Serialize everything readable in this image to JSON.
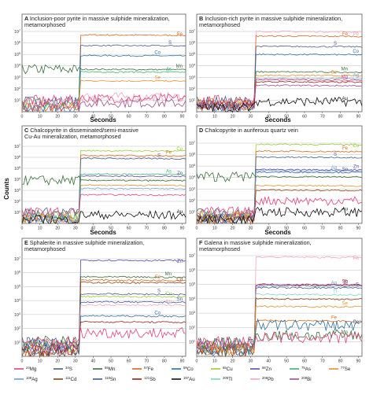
{
  "figure": {
    "ylabel": "Counts",
    "xlabel": "Seconds",
    "xticks": [
      0,
      10,
      20,
      30,
      40,
      50,
      60,
      70,
      80,
      90
    ],
    "yticks": [
      {
        "exp": 1
      },
      {
        "exp": 2
      },
      {
        "exp": 3
      },
      {
        "exp": 4
      },
      {
        "exp": 5
      },
      {
        "exp": 6
      },
      {
        "exp": 7
      }
    ]
  },
  "legend": [
    {
      "mass": "24",
      "el": "Mg",
      "color": "#e0457b"
    },
    {
      "mass": "34",
      "el": "S",
      "color": "#4a5d8c"
    },
    {
      "mass": "55",
      "el": "Mn",
      "color": "#3c6e3c"
    },
    {
      "mass": "57",
      "el": "Fe",
      "color": "#d2691e"
    },
    {
      "mass": "59",
      "el": "Co",
      "color": "#2f6f9f"
    },
    {
      "mass": "65",
      "el": "Cu",
      "color": "#9acd32"
    },
    {
      "mass": "66",
      "el": "Zn",
      "color": "#5b4aa8"
    },
    {
      "mass": "75",
      "el": "As",
      "color": "#3cb371"
    },
    {
      "mass": "77",
      "el": "Se",
      "color": "#e8902c"
    },
    {
      "mass": "109",
      "el": "Ag",
      "color": "#6f9fd0"
    },
    {
      "mass": "111",
      "el": "Cd",
      "color": "#8b4513"
    },
    {
      "mass": "118",
      "el": "Sn",
      "color": "#3d5aa0"
    },
    {
      "mass": "121",
      "el": "Sb",
      "color": "#9b1c1c"
    },
    {
      "mass": "197",
      "el": "Au",
      "color": "#111111"
    },
    {
      "mass": "205",
      "el": "Tl",
      "color": "#7fd6c0"
    },
    {
      "mass": "208",
      "el": "Pb",
      "color": "#f4a6bd"
    },
    {
      "mass": "209",
      "el": "Bi",
      "color": "#a0508f"
    }
  ],
  "chart_data": [
    {
      "type": "line",
      "panel": "A",
      "title": "Inclusion-poor pyrite in massive sulphide mineralization, metamorphosed",
      "xlabel": "",
      "ylabel": "Counts",
      "ylog": true,
      "ylim": [
        1,
        10000000
      ],
      "xlim": [
        0,
        92
      ],
      "onset": 33,
      "series": [
        {
          "name": "Fe",
          "color": "#d2691e",
          "bg": 2,
          "sig": 5000000,
          "label": "Fe"
        },
        {
          "name": "S",
          "color": "#4a5d8c",
          "bg": 8,
          "sig": 600000,
          "label": "S"
        },
        {
          "name": "Co",
          "color": "#2f6f9f",
          "bg": 2,
          "sig": 80000,
          "label": "Co"
        },
        {
          "name": "Mn",
          "color": "#3c6e3c",
          "bg": 5000,
          "sig": 5000,
          "label": "Mn"
        },
        {
          "name": "As",
          "color": "#3cb371",
          "bg": 5,
          "sig": 3000,
          "label": "As"
        },
        {
          "name": "Se",
          "color": "#e8902c",
          "bg": 3,
          "sig": 500,
          "label": "Se"
        },
        {
          "name": "Pb",
          "color": "#f4a6bd",
          "bg": 5,
          "sig": 20
        },
        {
          "name": "Mg",
          "color": "#e0457b",
          "bg": 10,
          "sig": 15
        },
        {
          "name": "Bi",
          "color": "#a0508f",
          "bg": 3,
          "sig": 6
        }
      ]
    },
    {
      "type": "line",
      "panel": "B",
      "title": "Inclusion-rich pyrite in massive sulphide mineralization, metamorphosed",
      "xlabel": "",
      "ylabel": "Counts",
      "ylog": true,
      "ylim": [
        1,
        10000000
      ],
      "xlim": [
        0,
        92
      ],
      "onset": 33,
      "series": [
        {
          "name": "Pb",
          "color": "#f4a6bd",
          "bg": 5,
          "sig": 10000000,
          "label": "Pb"
        },
        {
          "name": "Fe",
          "color": "#d2691e",
          "bg": 3,
          "sig": 4000000,
          "label": "Fe"
        },
        {
          "name": "S",
          "color": "#4a5d8c",
          "bg": 8,
          "sig": 500000,
          "label": "S"
        },
        {
          "name": "Co",
          "color": "#2f6f9f",
          "bg": 3,
          "sig": 100000,
          "label": "Co"
        },
        {
          "name": "Mn",
          "color": "#3c6e3c",
          "bg": 5,
          "sig": 3000,
          "label": "Mn"
        },
        {
          "name": "Se",
          "color": "#e8902c",
          "bg": 5,
          "sig": 1500,
          "label": "Se"
        },
        {
          "name": "Ag",
          "color": "#6f9fd0",
          "bg": 3,
          "sig": 800,
          "label": "Ag"
        },
        {
          "name": "Mg",
          "color": "#e0457b",
          "bg": 10,
          "sig": 600,
          "label": "Mg"
        },
        {
          "name": "Sb",
          "color": "#9b1c1c",
          "bg": 3,
          "sig": 400
        },
        {
          "name": "Bi",
          "color": "#a0508f",
          "bg": 3,
          "sig": 200
        },
        {
          "name": "Au",
          "color": "#111111",
          "bg": 2,
          "sig": 8,
          "label": "Au"
        }
      ]
    },
    {
      "type": "line",
      "panel": "C",
      "title": "Chalcopyrite in disseminated/semi-massive Cu-Au mineralization, metamorphosed",
      "xlabel": "",
      "ylabel": "Counts",
      "ylog": true,
      "ylim": [
        1,
        10000000
      ],
      "xlim": [
        0,
        92
      ],
      "onset": 33,
      "series": [
        {
          "name": "Cu",
          "color": "#9acd32",
          "bg": 5,
          "sig": 4000000,
          "label": "Cu"
        },
        {
          "name": "Fe",
          "color": "#d2691e",
          "bg": 3,
          "sig": 1500000,
          "label": "Fe"
        },
        {
          "name": "S",
          "color": "#4a5d8c",
          "bg": 10,
          "sig": 800000,
          "label": "S"
        },
        {
          "name": "Zn",
          "color": "#5b4aa8",
          "bg": 3,
          "sig": 20000,
          "label": "Zn"
        },
        {
          "name": "As",
          "color": "#3cb371",
          "bg": 4,
          "sig": 30000,
          "label": "As"
        },
        {
          "name": "Mn",
          "color": "#3c6e3c",
          "bg": 8000,
          "sig": 8000
        },
        {
          "name": "Se",
          "color": "#e8902c",
          "bg": 3,
          "sig": 3000
        },
        {
          "name": "Ag",
          "color": "#6f9fd0",
          "bg": 3,
          "sig": 1500
        },
        {
          "name": "Mg",
          "color": "#e0457b",
          "bg": 10,
          "sig": 400
        },
        {
          "name": "Au",
          "color": "#111111",
          "bg": 2,
          "sig": 6,
          "label": "Au"
        }
      ]
    },
    {
      "type": "line",
      "panel": "D",
      "title": "Chalcopyrite in auriferous quartz vein",
      "xlabel": "",
      "ylabel": "Counts",
      "ylog": true,
      "ylim": [
        1,
        10000000
      ],
      "xlim": [
        0,
        92
      ],
      "onset": 33,
      "series": [
        {
          "name": "Cu",
          "color": "#9acd32",
          "bg": 5,
          "sig": 8000000,
          "label": "Cu"
        },
        {
          "name": "Fe",
          "color": "#d2691e",
          "bg": 3,
          "sig": 2000000,
          "label": "Fe"
        },
        {
          "name": "S",
          "color": "#4a5d8c",
          "bg": 8,
          "sig": 600000,
          "label": "S"
        },
        {
          "name": "Zn",
          "color": "#5b4aa8",
          "bg": 3,
          "sig": 50000,
          "label": "Zn"
        },
        {
          "name": "Sn",
          "color": "#3d5aa0",
          "bg": 3,
          "sig": 30000,
          "label": "Sn"
        },
        {
          "name": "Ag",
          "color": "#6f9fd0",
          "bg": 3,
          "sig": 40000,
          "label": "Ag"
        },
        {
          "name": "Mn",
          "color": "#3c6e3c",
          "bg": 12000,
          "sig": 12000
        },
        {
          "name": "Se",
          "color": "#e8902c",
          "bg": 3,
          "sig": 2000
        },
        {
          "name": "Cd",
          "color": "#8b4513",
          "bg": 2,
          "sig": 800
        },
        {
          "name": "Mg",
          "color": "#e0457b",
          "bg": 10,
          "sig": 100
        },
        {
          "name": "Au",
          "color": "#111111",
          "bg": 2,
          "sig": 10,
          "label": "Au"
        }
      ]
    },
    {
      "type": "line",
      "panel": "E",
      "title": "Sphalerite in massive sulphide mineralization, metamorphosed",
      "xlabel": "",
      "ylabel": "Counts",
      "ylog": true,
      "ylim": [
        1,
        10000000
      ],
      "xlim": [
        0,
        92
      ],
      "onset": 33,
      "series": [
        {
          "name": "Zn",
          "color": "#5b4aa8",
          "bg": 5,
          "sig": 8000000,
          "label": "Zn"
        },
        {
          "name": "Mn",
          "color": "#3c6e3c",
          "bg": 10,
          "sig": 500000,
          "label": "Mn"
        },
        {
          "name": "Fe",
          "color": "#d2691e",
          "bg": 3,
          "sig": 300000,
          "label": "Fe"
        },
        {
          "name": "Cd",
          "color": "#8b4513",
          "bg": 2,
          "sig": 200000,
          "label": "Cd"
        },
        {
          "name": "Cu",
          "color": "#9acd32",
          "bg": 5,
          "sig": 20000,
          "label": "Cu"
        },
        {
          "name": "S",
          "color": "#4a5d8c",
          "bg": 8,
          "sig": 30000,
          "label": "S"
        },
        {
          "name": "Sn",
          "color": "#3d5aa0",
          "bg": 3,
          "sig": 8000,
          "label": "Sn"
        },
        {
          "name": "Pb",
          "color": "#f4a6bd",
          "bg": 3,
          "sig": 5000,
          "label": "Pb"
        },
        {
          "name": "Co",
          "color": "#2f6f9f",
          "bg": 3,
          "sig": 800,
          "label": "Co"
        },
        {
          "name": "Sb",
          "color": "#9b1c1c",
          "bg": 3,
          "sig": 300
        },
        {
          "name": "Mg",
          "color": "#e0457b",
          "bg": 10,
          "sig": 50
        }
      ]
    },
    {
      "type": "line",
      "panel": "F",
      "title": "Galena in massive sulphide mineralization, metamorphosed",
      "xlabel": "",
      "ylabel": "Counts",
      "ylog": true,
      "ylim": [
        1,
        10000000
      ],
      "xlim": [
        0,
        92
      ],
      "onset": 33,
      "series": [
        {
          "name": "Pb",
          "color": "#f4a6bd",
          "bg": 5,
          "sig": 8000000,
          "label": "Pb"
        },
        {
          "name": "Sb",
          "color": "#9b1c1c",
          "bg": 3,
          "sig": 100000,
          "label": "Sb"
        },
        {
          "name": "Ag",
          "color": "#6f9fd0",
          "bg": 3,
          "sig": 80000,
          "label": "Ag"
        },
        {
          "name": "S",
          "color": "#4a5d8c",
          "bg": 8,
          "sig": 60000,
          "label": "S"
        },
        {
          "name": "Bi",
          "color": "#a0508f",
          "bg": 3,
          "sig": 90000,
          "label": "Bi"
        },
        {
          "name": "Tl",
          "color": "#7fd6c0",
          "bg": 3,
          "sig": 20000,
          "label": "Tl"
        },
        {
          "name": "Cd",
          "color": "#8b4513",
          "bg": 2,
          "sig": 10000
        },
        {
          "name": "Se",
          "color": "#e8902c",
          "bg": 3,
          "sig": 3000,
          "label": "Se"
        },
        {
          "name": "Fe",
          "color": "#d2691e",
          "bg": 5,
          "sig": 300,
          "label": "Fe"
        },
        {
          "name": "Co",
          "color": "#2f6f9f",
          "bg": 3,
          "sig": 150,
          "label": "Co"
        },
        {
          "name": "Mn",
          "color": "#3c6e3c",
          "bg": 8,
          "sig": 30,
          "label": "Mn"
        },
        {
          "name": "Mg",
          "color": "#e0457b",
          "bg": 10,
          "sig": 20
        }
      ]
    }
  ]
}
